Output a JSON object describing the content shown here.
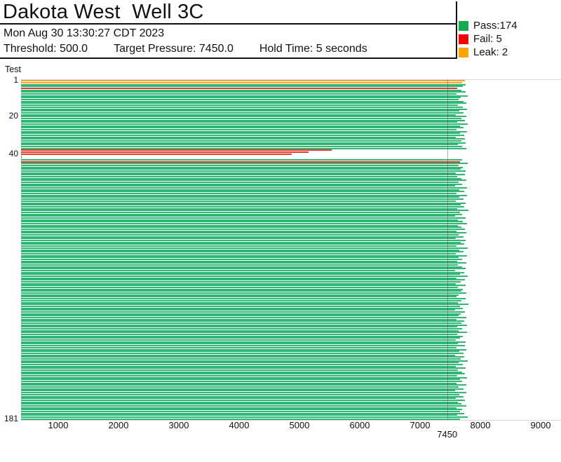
{
  "header": {
    "title": "Dakota West  Well 3C",
    "datetime": "Mon Aug 30 13:30:27 CDT 2023",
    "threshold": "Threshold: 500.0",
    "target_pressure": "Target Pressure: 7450.0",
    "hold_time": "Hold Time: 5 seconds"
  },
  "legend": {
    "items": [
      {
        "key": "pass",
        "label": "Pass:174",
        "color": "#14aa50"
      },
      {
        "key": "fail",
        "label": "Fail: 5",
        "color": "#f80000"
      },
      {
        "key": "leak",
        "label": "Leak: 2",
        "color": "#ffa300"
      }
    ]
  },
  "chart_data": {
    "type": "bar",
    "orientation": "horizontal",
    "title": "Dakota West  Well 3C",
    "ylabel": "Test",
    "xlabel": "",
    "xlim": [
      384,
      9337
    ],
    "x_ticks": [
      1000,
      2000,
      3000,
      4000,
      5000,
      6000,
      7000,
      8000,
      9000
    ],
    "y_ticks": [
      1,
      20,
      40,
      181
    ],
    "target_marker": {
      "value": 7450,
      "label": "7450"
    },
    "n_tests": 181,
    "counts": {
      "pass": 174,
      "fail": 5,
      "leak": 2
    },
    "colors": {
      "pass": "#2eb873",
      "fail": "#e73527",
      "leak": "#f2a52e"
    },
    "default_status": "pass",
    "status_overrides": {
      "1": "leak",
      "2": "leak",
      "5": "fail",
      "38": "fail",
      "39": "fail",
      "40": "fail",
      "44": "fail"
    },
    "values": [
      7741,
      7698,
      7755,
      7710,
      7621,
      7689,
      7752,
      7608,
      7796,
      7675,
      7644,
      7726,
      7769,
      7631,
      7707,
      7782,
      7650,
      7715,
      7598,
      7763,
      7684,
      7739,
      7612,
      7794,
      7658,
      7721,
      7603,
      7776,
      7667,
      7730,
      7592,
      7748,
      7686,
      7759,
      7625,
      7703,
      7771,
      5530,
      5150,
      4870,
      390,
      390,
      7695,
      7662,
      7788,
      7636,
      7712,
      7679,
      7753,
      7597,
      7744,
      7618,
      7691,
      7766,
      7642,
      7700,
      7581,
      7774,
      7655,
      7728,
      7606,
      7783,
      7648,
      7717,
      7590,
      7761,
      7673,
      7735,
      7615,
      7799,
      7660,
      7693,
      7586,
      7751,
      7632,
      7706,
      7778,
      7624,
      7687,
      7746,
      7601,
      7765,
      7639,
      7719,
      7594,
      7757,
      7670,
      7733,
      7610,
      7791,
      7653,
      7724,
      7588,
      7779,
      7645,
      7702,
      7616,
      7768,
      7629,
      7696,
      7750,
      7583,
      7737,
      7664,
      7786,
      7607,
      7743,
      7677,
      7595,
      7758,
      7627,
      7711,
      7681,
      7772,
      7638,
      7604,
      7754,
      7690,
      7622,
      7797,
      7659,
      7713,
      7585,
      7747,
      7669,
      7636,
      7762,
      7600,
      7729,
      7684,
      7775,
      7613,
      7694,
      7641,
      7784,
      7619,
      7705,
      7666,
      7592,
      7756,
      7628,
      7740,
      7599,
      7767,
      7647,
      7716,
      7582,
      7734,
      7672,
      7793,
      7634,
      7708,
      7589,
      7760,
      7626,
      7698,
      7749,
      7611,
      7781,
      7657,
      7696,
      7605,
      7764,
      7643,
      7722,
      7587,
      7770,
      7652,
      7718,
      7596,
      7742,
      7630,
      7687,
      7773,
      7609,
      7699,
      7661,
      7736,
      7614,
      7787,
      7668
    ]
  }
}
